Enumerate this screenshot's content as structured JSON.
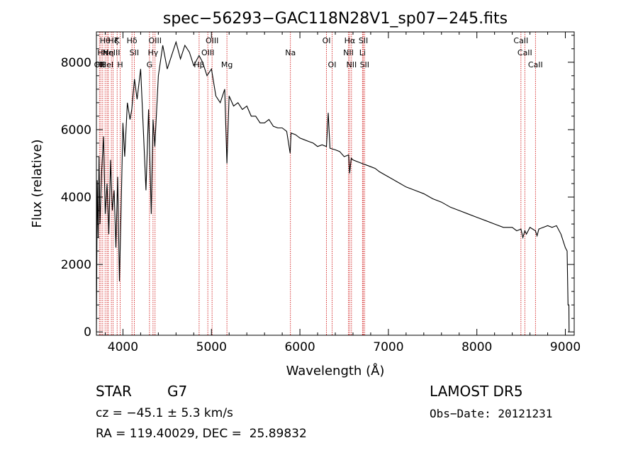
{
  "chart_data": {
    "type": "line",
    "title": "spec−56293−GAC118N28V1_sp07−245.fits",
    "xlabel": "Wavelength (Å)",
    "ylabel": "Flux (relative)",
    "xlim": [
      3700,
      9100
    ],
    "ylim": [
      -100,
      8900
    ],
    "xticks": [
      4000,
      5000,
      6000,
      7000,
      8000,
      9000
    ],
    "xticklabels": [
      "4000",
      "5000",
      "6000",
      "7000",
      "8000",
      "9000"
    ],
    "yticks": [
      0,
      2000,
      4000,
      6000,
      8000
    ],
    "yticklabels": [
      "0",
      "2000",
      "4000",
      "6000",
      "8000"
    ],
    "grid": false,
    "line_color": "#000000",
    "marker_color": "#cc0000",
    "series": [
      {
        "x": [
          3700,
          3710,
          3720,
          3730,
          3740,
          3760,
          3780,
          3800,
          3820,
          3840,
          3860,
          3880,
          3900,
          3920,
          3940,
          3960,
          3980,
          4000,
          4020,
          4050,
          4080,
          4100,
          4130,
          4160,
          4200,
          4230,
          4260,
          4290,
          4320,
          4340,
          4360,
          4400,
          4450,
          4500,
          4550,
          4600,
          4650,
          4700,
          4750,
          4800,
          4860,
          4900,
          4950,
          5000,
          5050,
          5100,
          5150,
          5175,
          5200,
          5250,
          5300,
          5350,
          5400,
          5450,
          5500,
          5550,
          5600,
          5650,
          5700,
          5750,
          5800,
          5850,
          5890,
          5900,
          5950,
          6000,
          6050,
          6100,
          6150,
          6200,
          6250,
          6300,
          6320,
          6340,
          6400,
          6450,
          6500,
          6550,
          6562,
          6580,
          6600,
          6650,
          6700,
          6750,
          6800,
          6850,
          6900,
          7000,
          7100,
          7200,
          7300,
          7400,
          7500,
          7600,
          7700,
          7800,
          7900,
          8000,
          8100,
          8200,
          8300,
          8400,
          8450,
          8498,
          8520,
          8542,
          8560,
          8600,
          8662,
          8680,
          8700,
          8800,
          8850,
          8900,
          8950,
          9000,
          9020,
          9030,
          9040,
          9042
        ],
        "y": [
          0,
          4500,
          2800,
          5200,
          3200,
          4800,
          5800,
          3500,
          4400,
          2900,
          5100,
          3600,
          4200,
          2500,
          4600,
          1500,
          3700,
          6200,
          5200,
          6800,
          6300,
          6600,
          7500,
          6900,
          7800,
          6000,
          4200,
          6600,
          3500,
          6300,
          5500,
          7600,
          8500,
          7800,
          8200,
          8600,
          8100,
          8500,
          8300,
          7900,
          8200,
          8000,
          7600,
          7800,
          7000,
          6800,
          7200,
          5000,
          7000,
          6700,
          6800,
          6600,
          6700,
          6400,
          6400,
          6200,
          6200,
          6300,
          6100,
          6050,
          6050,
          5950,
          5300,
          5900,
          5850,
          5750,
          5700,
          5650,
          5600,
          5500,
          5550,
          5500,
          6500,
          5450,
          5400,
          5350,
          5200,
          5250,
          4700,
          5150,
          5100,
          5050,
          5000,
          4950,
          4900,
          4850,
          4750,
          4600,
          4450,
          4300,
          4200,
          4100,
          3950,
          3850,
          3700,
          3600,
          3500,
          3400,
          3300,
          3200,
          3100,
          3100,
          3000,
          3050,
          2800,
          3000,
          2900,
          3100,
          3000,
          2850,
          3050,
          3150,
          3100,
          3150,
          2900,
          2500,
          2400,
          800,
          800,
          0
        ]
      }
    ],
    "line_markers": [
      {
        "x": 3734,
        "row": 2,
        "label": "OII"
      },
      {
        "x": 3750,
        "row": 2,
        "label": "Hθ"
      },
      {
        "x": 3771,
        "row": 1,
        "label": "Hh"
      },
      {
        "x": 3798,
        "row": 0,
        "label": "Hθ"
      },
      {
        "x": 3820,
        "row": 2,
        "label": "HeI"
      },
      {
        "x": 3835,
        "row": 1,
        "label": "Hη"
      },
      {
        "x": 3869,
        "row": 1,
        "label": "NeIII"
      },
      {
        "x": 3889,
        "row": 0,
        "label": "Hζ"
      },
      {
        "x": 3934,
        "row": 0,
        "label": "K"
      },
      {
        "x": 3969,
        "row": 2,
        "label": "H"
      },
      {
        "x": 4102,
        "row": 0,
        "label": "Hδ"
      },
      {
        "x": 4128,
        "row": 1,
        "label": "SII"
      },
      {
        "x": 4300,
        "row": 2,
        "label": "G"
      },
      {
        "x": 4340,
        "row": 1,
        "label": "Hγ"
      },
      {
        "x": 4363,
        "row": 0,
        "label": "OIII"
      },
      {
        "x": 4861,
        "row": 2,
        "label": "Hβ"
      },
      {
        "x": 4959,
        "row": 1,
        "label": "OIII"
      },
      {
        "x": 5007,
        "row": 0,
        "label": "OIII"
      },
      {
        "x": 5175,
        "row": 2,
        "label": "Mg"
      },
      {
        "x": 5893,
        "row": 1,
        "label": "Na"
      },
      {
        "x": 6300,
        "row": 0,
        "label": "OI"
      },
      {
        "x": 6364,
        "row": 2,
        "label": "OI"
      },
      {
        "x": 6548,
        "row": 1,
        "label": "NII"
      },
      {
        "x": 6563,
        "row": 0,
        "label": "Hα"
      },
      {
        "x": 6583,
        "row": 2,
        "label": "NII"
      },
      {
        "x": 6707,
        "row": 1,
        "label": "Li"
      },
      {
        "x": 6717,
        "row": 0,
        "label": "SII"
      },
      {
        "x": 6731,
        "row": 2,
        "label": "SII"
      },
      {
        "x": 8498,
        "row": 0,
        "label": "CaII"
      },
      {
        "x": 8542,
        "row": 1,
        "label": "CaII"
      },
      {
        "x": 8662,
        "row": 2,
        "label": "CaII"
      }
    ]
  },
  "info": {
    "class_label": "STAR",
    "subclass": "G7",
    "survey": "LAMOST DR5",
    "velocity": "cz = −45.1 ± 5.3 km/s",
    "obs_date": "Obs−Date: 20121231",
    "coords": "RA = 119.40029, DEC =  25.89832"
  }
}
